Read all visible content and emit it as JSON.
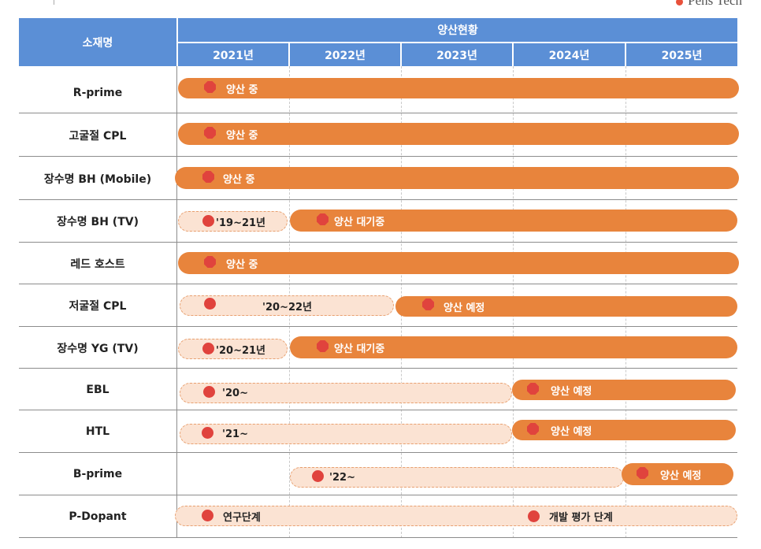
{
  "brand": {
    "text": "Pens Tech"
  },
  "header": {
    "material_col": "소재명",
    "group_title": "양산현황",
    "years": [
      "2021년",
      "2022년",
      "2023년",
      "2024년",
      "2025년"
    ]
  },
  "rows": [
    {
      "name": "R-prime",
      "bars": [
        {
          "style": "solid",
          "label": "양산 중"
        }
      ]
    },
    {
      "name": "고굴절 CPL",
      "bars": [
        {
          "style": "solid",
          "label": "양산 중"
        }
      ]
    },
    {
      "name": "장수명 BH (Mobile)",
      "bars": [
        {
          "style": "solid",
          "label": "양산 중"
        }
      ]
    },
    {
      "name": "장수명 BH (TV)",
      "bars": [
        {
          "style": "light",
          "label": "'19~21년"
        },
        {
          "style": "solid",
          "label": "양산 대기중"
        }
      ]
    },
    {
      "name": "레드 호스트",
      "bars": [
        {
          "style": "solid",
          "label": "양산 중"
        }
      ]
    },
    {
      "name": "저굴절 CPL",
      "bars": [
        {
          "style": "light",
          "label": "'20~22년"
        },
        {
          "style": "solid",
          "label": "양산 예정"
        }
      ]
    },
    {
      "name": "장수명 YG (TV)",
      "bars": [
        {
          "style": "light",
          "label": "'20~21년"
        },
        {
          "style": "solid",
          "label": "양산 대기중"
        }
      ]
    },
    {
      "name": "EBL",
      "bars": [
        {
          "style": "light",
          "label": "'20~"
        },
        {
          "style": "solid",
          "label": "양산 예정"
        }
      ]
    },
    {
      "name": "HTL",
      "bars": [
        {
          "style": "light",
          "label": "'21~"
        },
        {
          "style": "solid",
          "label": "양산 예정"
        }
      ]
    },
    {
      "name": "B-prime",
      "bars": [
        {
          "style": "light",
          "label": "'22~"
        },
        {
          "style": "solid",
          "label": "양산 예정"
        }
      ]
    },
    {
      "name": "P-Dopant",
      "bars": [
        {
          "style": "light",
          "label": "연구단계",
          "label2": "개발 평가 단계"
        }
      ]
    }
  ],
  "colors": {
    "header": "#5b8fd6",
    "solid_bar": "#e8843c",
    "light_bar": "#fbe3d3",
    "marker": "#e0433d"
  }
}
